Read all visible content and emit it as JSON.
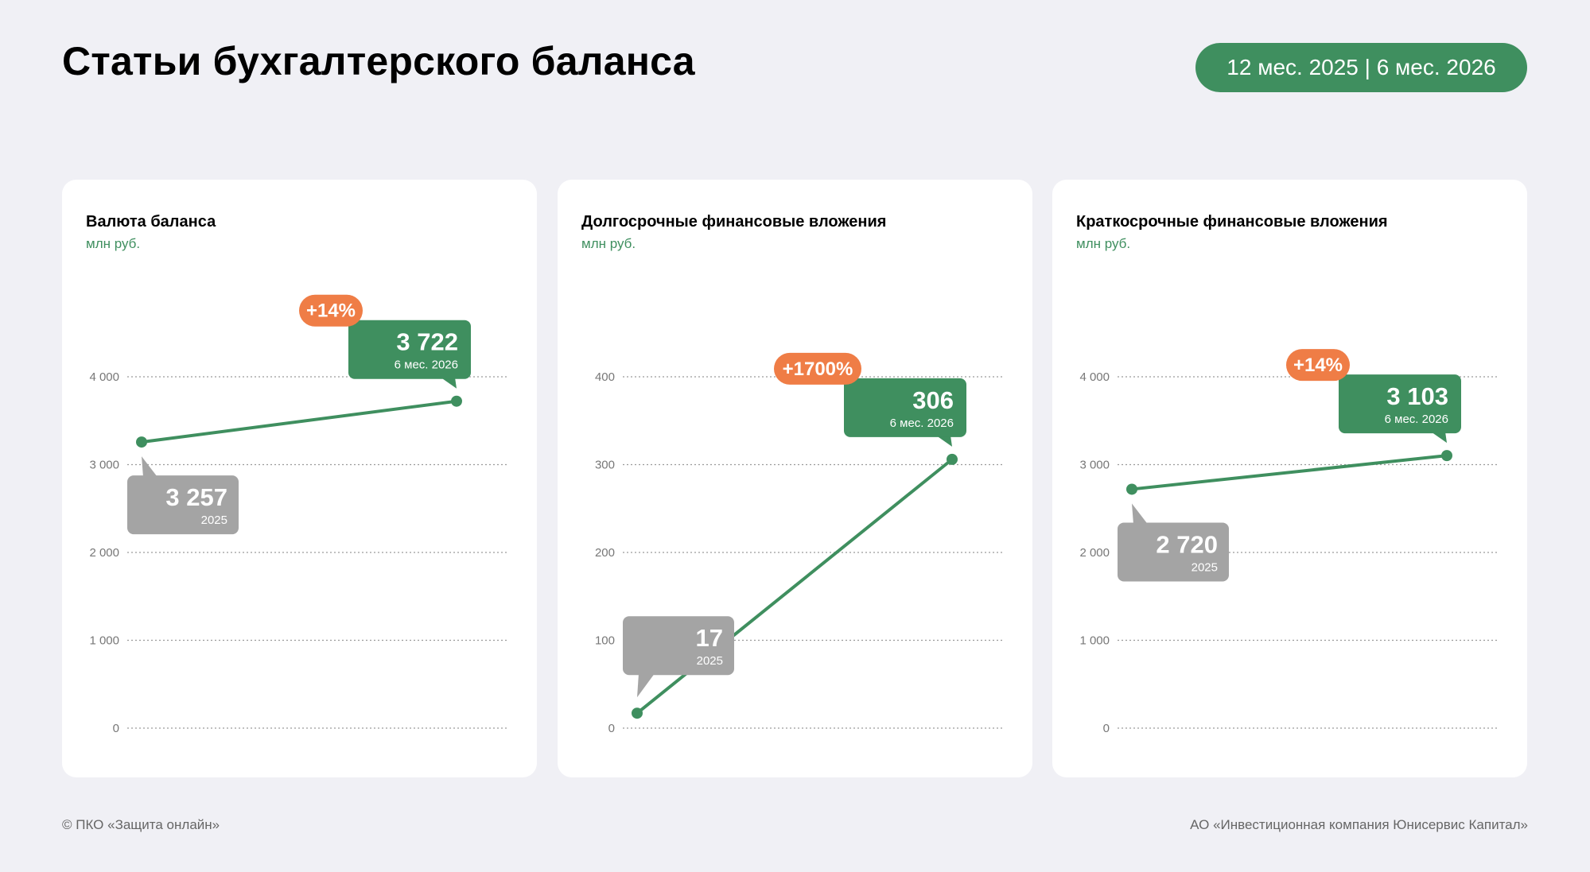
{
  "header": {
    "title": "Статьи бухгалтерского баланса",
    "period": "12 мес. 2025 | 6 мес. 2026"
  },
  "colors": {
    "green": "#3f8f5f",
    "gray": "#a4a4a4",
    "orange": "#ef7d46"
  },
  "chart_data": [
    {
      "type": "line",
      "title": "Валюта баланса",
      "unit": "млн руб.",
      "ylim": [
        0,
        4000
      ],
      "yticks": [
        0,
        1000,
        2000,
        3000,
        4000
      ],
      "ytick_labels": [
        "0",
        "1 000",
        "2 000",
        "3 000",
        "4 000"
      ],
      "x": [
        "2025",
        "6 мес. 2026"
      ],
      "values": [
        3257,
        3722
      ],
      "value_labels": [
        "3 257",
        "3 722"
      ],
      "change": "+14%",
      "grid": true
    },
    {
      "type": "line",
      "title": "Долгосрочные финансовые вложения",
      "unit": "млн руб.",
      "ylim": [
        0,
        400
      ],
      "yticks": [
        0,
        100,
        200,
        300,
        400
      ],
      "ytick_labels": [
        "0",
        "100",
        "200",
        "300",
        "400"
      ],
      "x": [
        "2025",
        "6 мес. 2026"
      ],
      "values": [
        17,
        306
      ],
      "value_labels": [
        "17",
        "306"
      ],
      "change": "+1700%",
      "grid": true
    },
    {
      "type": "line",
      "title": "Краткосрочные финансовые вложения",
      "unit": "млн руб.",
      "ylim": [
        0,
        4000
      ],
      "yticks": [
        0,
        1000,
        2000,
        3000,
        4000
      ],
      "ytick_labels": [
        "0",
        "1 000",
        "2 000",
        "3 000",
        "4 000"
      ],
      "x": [
        "2025",
        "6 мес. 2026"
      ],
      "values": [
        2720,
        3103
      ],
      "value_labels": [
        "2 720",
        "3 103"
      ],
      "change": "+14%",
      "grid": true
    }
  ],
  "footer": {
    "left": "© ПКО «Защита онлайн»",
    "right": "АО «Инвестиционная компания Юнисервис Капитал»"
  }
}
